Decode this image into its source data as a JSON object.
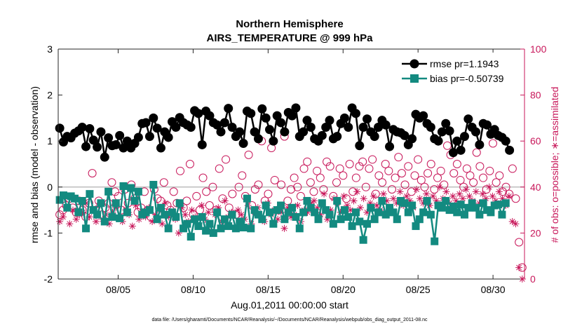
{
  "colors": {
    "rmse": "#000000",
    "bias": "#138a80",
    "obs": "#c8175a",
    "zero_line": "#bdbdbd"
  },
  "chart_data": {
    "type": "line",
    "title": "Northern Hemisphere",
    "subtitle": "AIRS_TEMPERATURE @ 999 hPa",
    "xlabel": "Aug.01,2011 00:00:00 start",
    "ylabel": "rmse and bias (model - observation)",
    "y2label": "# of obs: o=possible; ∗=assimilated",
    "footnote": "data file: /Users/gharamti/Documents/NCAR/Reanalysis/~/Documents/NCAR/Reanalysis/webpub/obs_diag_output_2011-08.nc",
    "xlim": [
      1,
      32.1
    ],
    "ylim": [
      -2,
      3
    ],
    "y2lim": [
      0,
      100
    ],
    "x_ticks": [
      5,
      10,
      15,
      20,
      25,
      30
    ],
    "x_tick_labels": [
      "08/05",
      "08/10",
      "08/15",
      "08/20",
      "08/25",
      "08/30"
    ],
    "y_ticks": [
      -2,
      -1,
      0,
      1,
      2,
      3
    ],
    "y_tick_labels": [
      "-2",
      "-1",
      "0",
      "1",
      "2",
      "3"
    ],
    "y2_ticks": [
      0,
      20,
      40,
      60,
      80,
      100
    ],
    "y2_tick_labels": [
      "0",
      "20",
      "40",
      "60",
      "80",
      "100"
    ],
    "legend_position": "top-right",
    "grid": false,
    "x_start": 1.1,
    "x_step": 0.25,
    "series": [
      {
        "name": "rmse pr=1.1943",
        "axis": "left",
        "marker": "circle",
        "values": [
          1.28,
          0.98,
          1.1,
          1.07,
          1.17,
          1.22,
          1.3,
          0.88,
          1.27,
          1.02,
          0.87,
          1.2,
          0.65,
          1.07,
          0.9,
          0.92,
          1.12,
          0.85,
          1.0,
          0.85,
          0.95,
          1.08,
          1.38,
          1.4,
          1.1,
          1.5,
          1.28,
          0.85,
          1.2,
          1.08,
          1.42,
          1.3,
          1.51,
          1.4,
          1.35,
          1.3,
          1.66,
          1.6,
          0.92,
          1.65,
          1.55,
          1.4,
          1.35,
          1.2,
          1.4,
          1.71,
          1.3,
          1.1,
          1.2,
          0.95,
          1.65,
          1.6,
          1.2,
          1.05,
          1.7,
          1.5,
          1.25,
          1.0,
          1.55,
          1.4,
          1.2,
          1.62,
          1.55,
          1.72,
          1.1,
          1.2,
          1.45,
          1.3,
          1.05,
          1.0,
          1.12,
          1.3,
          1.45,
          1.05,
          1.1,
          1.38,
          1.5,
          1.3,
          1.72,
          1.6,
          0.9,
          1.3,
          1.48,
          1.2,
          1.1,
          1.3,
          1.45,
          1.35,
          0.88,
          1.25,
          1.2,
          1.18,
          1.12,
          0.92,
          1.05,
          1.58,
          1.5,
          1.55,
          1.38,
          1.3,
          1.05,
          1.0,
          1.2,
          1.38,
          1.22,
          0.75,
          1.0,
          0.8,
          1.1,
          1.48,
          1.3,
          1.2,
          0.92,
          1.38,
          1.35,
          1.15,
          1.25,
          1.12,
          1.08,
          1.0,
          0.8
        ]
      },
      {
        "name": "bias pr=-0.50739",
        "axis": "left",
        "marker": "square",
        "values": [
          -0.28,
          -0.18,
          -0.45,
          -0.2,
          -0.25,
          -0.55,
          -0.3,
          -0.9,
          -0.15,
          -0.5,
          -0.6,
          -0.35,
          -0.75,
          -0.1,
          -0.65,
          -0.35,
          -0.68,
          0.02,
          -0.55,
          -0.02,
          -0.3,
          -0.1,
          -0.6,
          -0.55,
          -0.5,
          0.05,
          -0.7,
          -0.45,
          -0.6,
          -0.9,
          -0.55,
          -0.65,
          -0.35,
          -0.9,
          -0.8,
          -1.08,
          -0.7,
          -0.85,
          -0.65,
          -0.95,
          -0.8,
          -1.0,
          -0.55,
          -0.9,
          -0.7,
          -0.85,
          -0.6,
          -0.9,
          -0.75,
          -0.88,
          -0.25,
          -0.9,
          -0.5,
          -0.6,
          -0.7,
          -0.4,
          -0.55,
          -0.8,
          -0.5,
          -0.4,
          -0.7,
          -0.55,
          -0.45,
          -0.65,
          -0.9,
          -0.55,
          -0.3,
          -0.45,
          -0.55,
          -0.7,
          -0.35,
          -0.5,
          -0.6,
          -0.8,
          -0.3,
          -0.7,
          -0.5,
          -0.65,
          -0.85,
          -0.55,
          -0.75,
          -1.15,
          -0.8,
          -0.45,
          -0.7,
          -0.55,
          -0.3,
          -0.6,
          -0.45,
          -0.55,
          -0.7,
          -0.3,
          -0.35,
          -0.55,
          -0.4,
          -0.85,
          -0.7,
          -0.55,
          -0.3,
          -0.6,
          -1.18,
          -0.4,
          -0.45,
          -0.3,
          -0.5,
          -0.42,
          -0.55,
          -0.38,
          -0.6,
          -0.45,
          -0.35,
          -0.45,
          -0.6,
          -0.35,
          -0.5,
          -0.55,
          -0.4,
          -0.38,
          -0.6,
          -0.35
        ]
      },
      {
        "name": "possible",
        "axis": "right",
        "marker": "open-circle",
        "values": [
          28,
          30,
          32,
          35,
          31,
          29,
          34,
          30,
          27,
          33,
          46,
          30,
          34,
          28,
          31,
          33,
          42,
          38,
          36,
          30,
          39,
          33,
          41,
          35,
          29,
          31,
          38,
          30,
          27,
          39,
          35,
          34,
          42,
          32,
          30,
          38,
          33,
          47,
          31,
          34,
          50,
          28,
          36,
          30,
          44,
          38,
          32,
          40,
          30,
          48,
          35,
          52,
          31,
          37,
          28,
          40,
          45,
          36,
          54,
          32,
          39,
          41,
          60,
          34,
          37,
          57,
          43,
          30,
          41,
          62,
          34,
          39,
          44,
          40,
          36,
          48,
          51,
          42,
          38,
          47,
          44,
          39,
          51,
          49,
          36,
          42,
          48,
          45,
          35,
          50,
          38,
          44,
          49,
          51,
          40,
          48,
          52,
          37,
          45,
          42,
          50,
          47,
          39,
          44,
          53,
          46,
          41,
          49,
          38,
          45,
          52,
          43,
          40,
          46,
          50,
          39,
          44,
          47,
          41,
          58,
          54,
          46,
          50,
          43,
          40,
          48,
          45,
          42,
          55,
          49,
          44,
          39,
          47,
          59,
          42,
          45,
          38,
          40,
          37,
          48,
          35,
          16,
          5
        ]
      },
      {
        "name": "assimilated",
        "axis": "right",
        "marker": "asterisk",
        "values": [
          25,
          27,
          31,
          24,
          30,
          26,
          28,
          29,
          33,
          27,
          30,
          25,
          32,
          26,
          28,
          24,
          29,
          31,
          27,
          25,
          30,
          28,
          23,
          32,
          26,
          29,
          27,
          31,
          25,
          28,
          30,
          24,
          33,
          27,
          29,
          26,
          20,
          31,
          28,
          25,
          30,
          27,
          23,
          32,
          26,
          29,
          21,
          28,
          31,
          25,
          34,
          27,
          29,
          22,
          30,
          28,
          26,
          32,
          24,
          29,
          31,
          27,
          25,
          33,
          28,
          30,
          26,
          29,
          22,
          31,
          27,
          28,
          32,
          25,
          30,
          29,
          33,
          34,
          31,
          28,
          37,
          26,
          30,
          35,
          33,
          29,
          36,
          32,
          30,
          34,
          38,
          31,
          35,
          29,
          33,
          36,
          32,
          30,
          37,
          34,
          31,
          35,
          33,
          38,
          32,
          36,
          34,
          31,
          39,
          35,
          33,
          37,
          32,
          36,
          34,
          40,
          35,
          38,
          33,
          36,
          34,
          37,
          35,
          39,
          36,
          34,
          38,
          33,
          37,
          35,
          40,
          36,
          34,
          38,
          35,
          32,
          36,
          25,
          24,
          5,
          0
        ]
      }
    ]
  }
}
